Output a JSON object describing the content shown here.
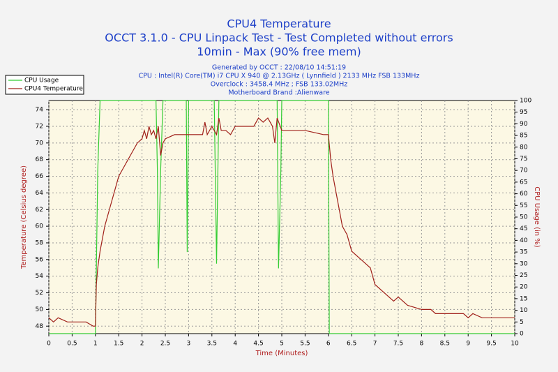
{
  "chart_data": {
    "type": "line",
    "title": "CPU4 Temperature",
    "title_lines": [
      "OCCT 3.1.0 - CPU Linpack Test - Test Completed without errors",
      "10min - Max (90% free mem)"
    ],
    "subtitle_lines": [
      "Generated by OCCT : 22/08/10 14:51:19",
      "CPU : Intel(R) Core(TM) i7 CPU X 940 @ 2.13GHz ( Lynnfield ) 2133 MHz FSB 133MHz",
      "Overclock : 3458.4 MHz ; FSB 133.02MHz",
      "Motherboard Brand :Alienware"
    ],
    "xlabel": "Time (Minutes)",
    "ylabel": "Temperature (Celsius degree)",
    "y2label": "CPU Usage (in %)",
    "xlim": [
      0,
      10
    ],
    "xticks": [
      0,
      0.5,
      1,
      1.5,
      2,
      2.5,
      3,
      3.5,
      4,
      4.5,
      5,
      5.5,
      6,
      6.5,
      7,
      7.5,
      8,
      8.5,
      9,
      9.5,
      10
    ],
    "ylim": [
      47.1,
      75.1
    ],
    "yticks": [
      48,
      50,
      52,
      54,
      56,
      58,
      60,
      62,
      64,
      66,
      68,
      70,
      72,
      74
    ],
    "y2lim": [
      0,
      100
    ],
    "y2ticks": [
      0,
      5,
      10,
      15,
      20,
      25,
      30,
      35,
      40,
      45,
      50,
      55,
      60,
      65,
      70,
      75,
      80,
      85,
      90,
      95,
      100
    ],
    "grid": true,
    "legend": "top-left",
    "series": [
      {
        "name": "CPU Usage",
        "color": "#33cc33",
        "axis": "y2",
        "x": [
          0,
          1.0,
          1.05,
          1.1,
          2.3,
          2.33,
          2.35,
          2.4,
          2.45,
          2.95,
          2.97,
          3.0,
          3.55,
          3.6,
          3.65,
          4.9,
          4.93,
          4.98,
          5.0,
          6.0,
          6.02,
          10
        ],
        "values": [
          0,
          0,
          70,
          100,
          100,
          70,
          28,
          70,
          100,
          100,
          35,
          100,
          100,
          30,
          100,
          100,
          28,
          70,
          100,
          100,
          0,
          0
        ]
      },
      {
        "name": "CPU4 Temperature",
        "color": "#a0201a",
        "x": [
          0,
          0.1,
          0.2,
          0.4,
          0.6,
          0.8,
          0.95,
          1.0,
          1.02,
          1.05,
          1.1,
          1.2,
          1.3,
          1.4,
          1.5,
          1.6,
          1.7,
          1.8,
          1.9,
          2.0,
          2.05,
          2.1,
          2.15,
          2.2,
          2.25,
          2.3,
          2.35,
          2.4,
          2.45,
          2.5,
          2.7,
          3.0,
          3.3,
          3.35,
          3.4,
          3.5,
          3.6,
          3.65,
          3.7,
          3.8,
          3.9,
          4.0,
          4.4,
          4.5,
          4.6,
          4.7,
          4.8,
          4.85,
          4.9,
          5.0,
          5.5,
          5.9,
          6.0,
          6.05,
          6.1,
          6.2,
          6.3,
          6.4,
          6.5,
          6.7,
          6.9,
          7.0,
          7.2,
          7.4,
          7.5,
          7.7,
          8.0,
          8.2,
          8.3,
          8.75,
          8.9,
          9.0,
          9.1,
          9.3,
          9.5,
          10.0
        ],
        "values": [
          49,
          48.5,
          49,
          48.5,
          48.5,
          48.5,
          48,
          48,
          53,
          55,
          57,
          60,
          62,
          64,
          66,
          67,
          68,
          69,
          70,
          70.5,
          71.5,
          70.5,
          72,
          71,
          71.5,
          70.5,
          72,
          68.5,
          70,
          70.5,
          71,
          71,
          71,
          72.5,
          71,
          72,
          71,
          73,
          71.5,
          71.5,
          71,
          72,
          72,
          73,
          72.5,
          73,
          72,
          70,
          73,
          71.5,
          71.5,
          71,
          71,
          68,
          66,
          63,
          60,
          59,
          57,
          56,
          55,
          53,
          52,
          51,
          51.5,
          50.5,
          50,
          50,
          49.5,
          49.5,
          49.5,
          49,
          49.5,
          49,
          49,
          49
        ]
      }
    ]
  }
}
